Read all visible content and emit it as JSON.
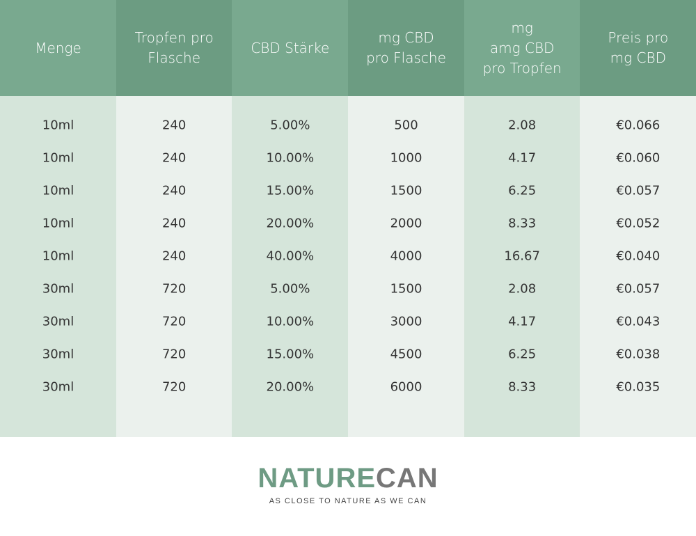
{
  "table": {
    "header": [
      [
        "Menge"
      ],
      [
        "Tropfen pro",
        "Flasche"
      ],
      [
        "CBD Stärke"
      ],
      [
        "mg CBD",
        "pro Flasche"
      ],
      [
        "mg",
        "amg CBD",
        "pro Tropfen"
      ],
      [
        "Preis pro",
        "mg CBD"
      ]
    ],
    "rows": [
      [
        "10ml",
        "240",
        "5.00%",
        "500",
        "2.08",
        "€0.066"
      ],
      [
        "10ml",
        "240",
        "10.00%",
        "1000",
        "4.17",
        "€0.060"
      ],
      [
        "10ml",
        "240",
        "15.00%",
        "1500",
        "6.25",
        "€0.057"
      ],
      [
        "10ml",
        "240",
        "20.00%",
        "2000",
        "8.33",
        "€0.052"
      ],
      [
        "10ml",
        "240",
        "40.00%",
        "4000",
        "16.67",
        "€0.040"
      ],
      [
        "30ml",
        "720",
        "5.00%",
        "1500",
        "2.08",
        "€0.057"
      ],
      [
        "30ml",
        "720",
        "10.00%",
        "3000",
        "4.17",
        "€0.043"
      ],
      [
        "30ml",
        "720",
        "15.00%",
        "4500",
        "6.25",
        "€0.038"
      ],
      [
        "30ml",
        "720",
        "20.00%",
        "6000",
        "8.33",
        "€0.035"
      ]
    ]
  },
  "logo": {
    "brand_first": "NATURE",
    "brand_second": "CAN",
    "tagline": "AS CLOSE TO NATURE AS WE CAN"
  }
}
